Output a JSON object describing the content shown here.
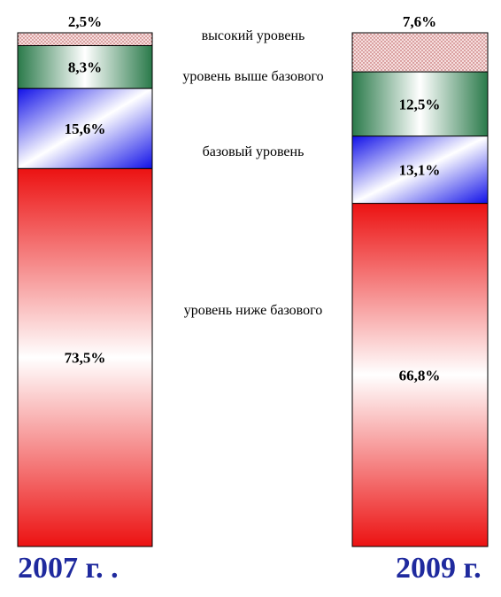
{
  "chart_data": {
    "type": "bar",
    "stacked": true,
    "normalized": true,
    "categories": [
      "2007 г. .",
      "2009 г."
    ],
    "series": [
      {
        "name": "уровень ниже базового",
        "values": [
          73.5,
          66.8
        ],
        "labels": [
          "73,5%",
          "66,8%"
        ],
        "color": "#f01818",
        "fill": "red-gradient"
      },
      {
        "name": "базовый уровень",
        "values": [
          15.6,
          13.1
        ],
        "labels": [
          "15,6%",
          "13,1%"
        ],
        "color": "#1414e6",
        "fill": "blue-gradient"
      },
      {
        "name": "уровень выше базового",
        "values": [
          8.3,
          12.5
        ],
        "labels": [
          "8,3%",
          "12,5%"
        ],
        "color": "#2e7d4c",
        "fill": "green-gradient"
      },
      {
        "name": "высокий уровень",
        "values": [
          2.5,
          7.6
        ],
        "labels": [
          "2,5%",
          "7,6%"
        ],
        "color": "#d07878",
        "fill": "dotted-pattern"
      }
    ],
    "legend_placement": "between-bars",
    "grid": false,
    "category_label_color": "#1f2a9e"
  }
}
